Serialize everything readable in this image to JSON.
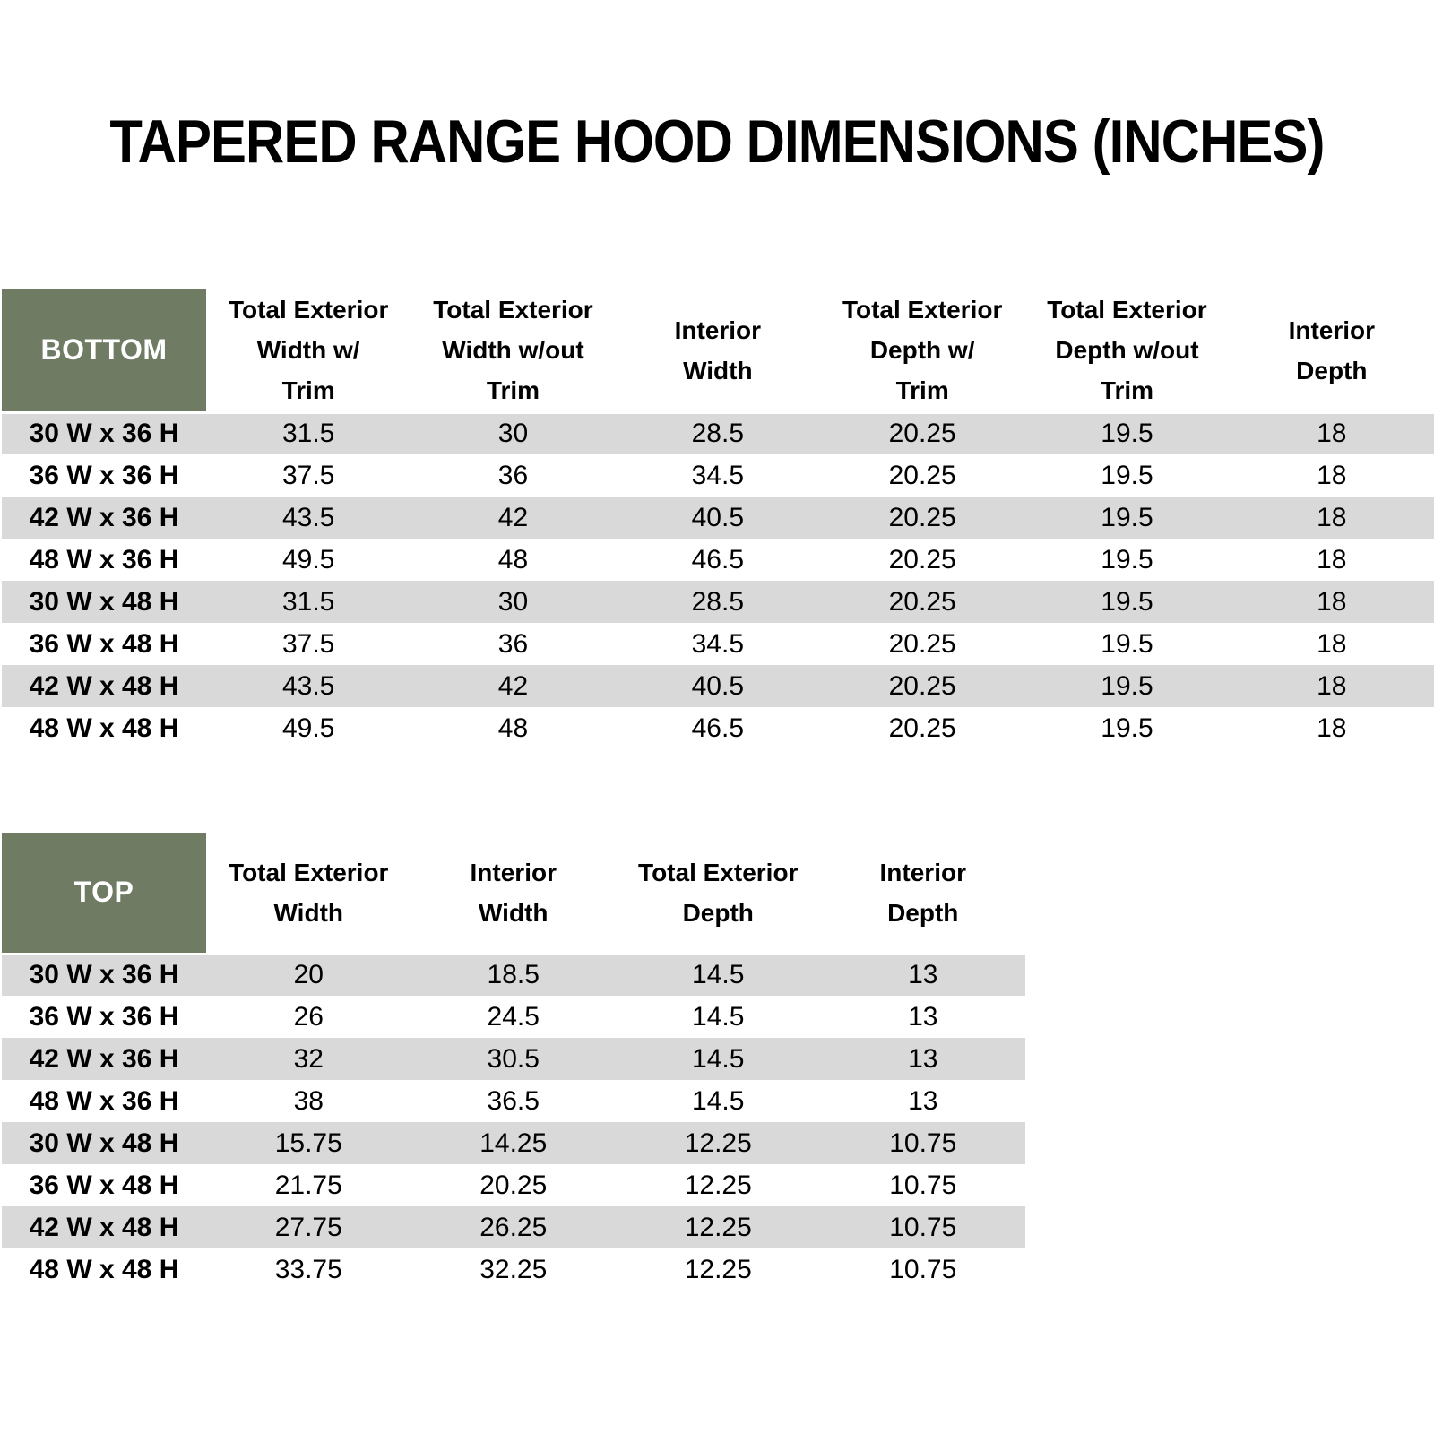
{
  "title": "TAPERED RANGE HOOD DIMENSIONS (INCHES)",
  "colors": {
    "header_cell_green": "#6F7C63",
    "stripe_gray": "#D9D9D9",
    "header_cell_text": "#FFFFFF",
    "body_text": "#000000",
    "background": "#FFFFFF"
  },
  "bottom_table": {
    "label": "BOTTOM",
    "columns": [
      "Total Exterior\nWidth w/\nTrim",
      "Total Exterior\nWidth w/out\nTrim",
      "Interior\nWidth",
      "Total Exterior\nDepth w/\nTrim",
      "Total Exterior\nDepth w/out\nTrim",
      "Interior\nDepth"
    ],
    "rows": [
      {
        "size": "30 W x 36 H",
        "values": [
          "31.5",
          "30",
          "28.5",
          "20.25",
          "19.5",
          "18"
        ]
      },
      {
        "size": "36 W x 36 H",
        "values": [
          "37.5",
          "36",
          "34.5",
          "20.25",
          "19.5",
          "18"
        ]
      },
      {
        "size": "42 W x 36 H",
        "values": [
          "43.5",
          "42",
          "40.5",
          "20.25",
          "19.5",
          "18"
        ]
      },
      {
        "size": "48 W x 36 H",
        "values": [
          "49.5",
          "48",
          "46.5",
          "20.25",
          "19.5",
          "18"
        ]
      },
      {
        "size": "30 W x 48 H",
        "values": [
          "31.5",
          "30",
          "28.5",
          "20.25",
          "19.5",
          "18"
        ]
      },
      {
        "size": "36 W x 48 H",
        "values": [
          "37.5",
          "36",
          "34.5",
          "20.25",
          "19.5",
          "18"
        ]
      },
      {
        "size": "42 W x 48 H",
        "values": [
          "43.5",
          "42",
          "40.5",
          "20.25",
          "19.5",
          "18"
        ]
      },
      {
        "size": "48 W x 48 H",
        "values": [
          "49.5",
          "48",
          "46.5",
          "20.25",
          "19.5",
          "18"
        ]
      }
    ]
  },
  "top_table": {
    "label": "TOP",
    "columns": [
      "Total Exterior\nWidth",
      "Interior\nWidth",
      "Total Exterior\nDepth",
      "Interior\nDepth"
    ],
    "rows": [
      {
        "size": "30 W x 36 H",
        "values": [
          "20",
          "18.5",
          "14.5",
          "13"
        ]
      },
      {
        "size": "36 W x 36 H",
        "values": [
          "26",
          "24.5",
          "14.5",
          "13"
        ]
      },
      {
        "size": "42 W x 36 H",
        "values": [
          "32",
          "30.5",
          "14.5",
          "13"
        ]
      },
      {
        "size": "48 W x 36 H",
        "values": [
          "38",
          "36.5",
          "14.5",
          "13"
        ]
      },
      {
        "size": "30 W x 48 H",
        "values": [
          "15.75",
          "14.25",
          "12.25",
          "10.75"
        ]
      },
      {
        "size": "36 W x 48 H",
        "values": [
          "21.75",
          "20.25",
          "12.25",
          "10.75"
        ]
      },
      {
        "size": "42 W x 48 H",
        "values": [
          "27.75",
          "26.25",
          "12.25",
          "10.75"
        ]
      },
      {
        "size": "48 W x 48 H",
        "values": [
          "33.75",
          "32.25",
          "12.25",
          "10.75"
        ]
      }
    ]
  }
}
